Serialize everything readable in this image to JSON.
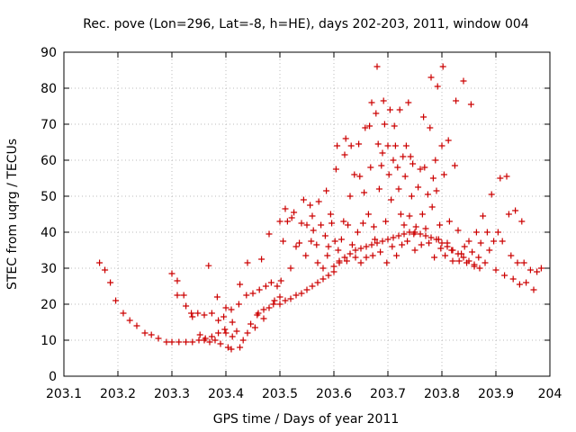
{
  "chart_data": {
    "type": "scatter",
    "title": "Rec. pove (Lon=296, Lat=-8, h=HE), days 202-203, 2011, window 004",
    "xlabel": "GPS time / Days of year 2011",
    "ylabel": "STEC from uqrg / TECUs",
    "xlim": [
      203.1,
      204.0
    ],
    "ylim": [
      0,
      90
    ],
    "xticks": [
      "203.1",
      "203.2",
      "203.3",
      "203.4",
      "203.5",
      "203.6",
      "203.7",
      "203.8",
      "203.9",
      "204"
    ],
    "yticks": [
      "0",
      "10",
      "20",
      "30",
      "40",
      "50",
      "60",
      "70",
      "80",
      "90"
    ],
    "grid": true,
    "marker": "+",
    "color": "#cc0000",
    "series": [
      {
        "points": [
          [
            203.166,
            31.5
          ],
          [
            203.176,
            29.5
          ],
          [
            203.186,
            26.0
          ],
          [
            203.196,
            21.0
          ],
          [
            203.21,
            17.5
          ],
          [
            203.222,
            15.5
          ],
          [
            203.235,
            14.0
          ],
          [
            203.25,
            12.0
          ],
          [
            203.262,
            11.5
          ],
          [
            203.275,
            10.5
          ],
          [
            203.29,
            9.5
          ],
          [
            203.3,
            9.5
          ],
          [
            203.313,
            9.5
          ],
          [
            203.326,
            9.5
          ],
          [
            203.338,
            9.5
          ],
          [
            203.35,
            10.0
          ],
          [
            203.362,
            10.5
          ],
          [
            203.374,
            11.0
          ],
          [
            203.386,
            12.0
          ],
          [
            203.398,
            13.0
          ],
          [
            203.3,
            28.5
          ],
          [
            203.31,
            26.5
          ],
          [
            203.31,
            22.5
          ],
          [
            203.322,
            22.5
          ],
          [
            203.326,
            19.5
          ],
          [
            203.336,
            17.5
          ],
          [
            203.338,
            16.5
          ],
          [
            203.348,
            17.5
          ],
          [
            203.36,
            17.0
          ],
          [
            203.368,
            30.7
          ],
          [
            203.374,
            17.5
          ],
          [
            203.384,
            22.0
          ],
          [
            203.386,
            15.5
          ],
          [
            203.396,
            16.5
          ],
          [
            203.4,
            19.0
          ],
          [
            203.41,
            18.5
          ],
          [
            203.412,
            15.0
          ],
          [
            203.424,
            20.0
          ],
          [
            203.426,
            25.5
          ],
          [
            203.438,
            22.5
          ],
          [
            203.44,
            31.5
          ],
          [
            203.45,
            23.0
          ],
          [
            203.458,
            17.0
          ],
          [
            203.462,
            24.0
          ],
          [
            203.466,
            32.5
          ],
          [
            203.47,
            18.5
          ],
          [
            203.474,
            25.0
          ],
          [
            203.48,
            39.5
          ],
          [
            203.484,
            26.0
          ],
          [
            203.49,
            21.0
          ],
          [
            203.495,
            25.0
          ],
          [
            203.5,
            22.0
          ],
          [
            203.502,
            26.5
          ],
          [
            203.352,
            11.5
          ],
          [
            203.36,
            10.0
          ],
          [
            203.37,
            9.5
          ],
          [
            203.38,
            10.0
          ],
          [
            203.39,
            9.0
          ],
          [
            203.4,
            12.0
          ],
          [
            203.404,
            8.0
          ],
          [
            203.41,
            7.5
          ],
          [
            203.412,
            11.0
          ],
          [
            203.42,
            12.5
          ],
          [
            203.426,
            8.0
          ],
          [
            203.432,
            10.0
          ],
          [
            203.44,
            12.0
          ],
          [
            203.446,
            14.5
          ],
          [
            203.454,
            13.5
          ],
          [
            203.46,
            17.5
          ],
          [
            203.47,
            16.0
          ],
          [
            203.48,
            19.0
          ],
          [
            203.488,
            20.0
          ],
          [
            203.5,
            20.0
          ],
          [
            203.51,
            21.0
          ],
          [
            203.52,
            21.5
          ],
          [
            203.53,
            22.5
          ],
          [
            203.54,
            23.0
          ],
          [
            203.55,
            24.0
          ],
          [
            203.56,
            25.0
          ],
          [
            203.57,
            26.0
          ],
          [
            203.58,
            27.0
          ],
          [
            203.59,
            28.0
          ],
          [
            203.6,
            29.0
          ],
          [
            203.5,
            43.0
          ],
          [
            203.506,
            37.5
          ],
          [
            203.51,
            46.5
          ],
          [
            203.514,
            43.0
          ],
          [
            203.52,
            30.0
          ],
          [
            203.522,
            44.0
          ],
          [
            203.526,
            45.5
          ],
          [
            203.53,
            36.0
          ],
          [
            203.536,
            37.0
          ],
          [
            203.54,
            42.5
          ],
          [
            203.544,
            49.0
          ],
          [
            203.548,
            33.5
          ],
          [
            203.55,
            42.0
          ],
          [
            203.556,
            47.5
          ],
          [
            203.558,
            37.5
          ],
          [
            203.56,
            44.5
          ],
          [
            203.562,
            40.5
          ],
          [
            203.568,
            36.5
          ],
          [
            203.57,
            31.5
          ],
          [
            203.572,
            48.5
          ],
          [
            203.576,
            42.0
          ],
          [
            203.58,
            30.0
          ],
          [
            203.584,
            39.0
          ],
          [
            203.586,
            51.5
          ],
          [
            203.588,
            33.5
          ],
          [
            203.59,
            36.0
          ],
          [
            203.594,
            45.0
          ],
          [
            203.596,
            42.5
          ],
          [
            203.6,
            30.5
          ],
          [
            203.602,
            37.5
          ],
          [
            203.604,
            57.5
          ],
          [
            203.606,
            64.0
          ],
          [
            203.608,
            35.0
          ],
          [
            203.61,
            31.5
          ],
          [
            203.614,
            38.0
          ],
          [
            203.618,
            43.0
          ],
          [
            203.62,
            61.5
          ],
          [
            203.622,
            66.0
          ],
          [
            203.624,
            32.0
          ],
          [
            203.626,
            42.0
          ],
          [
            203.63,
            50.0
          ],
          [
            203.632,
            64.0
          ],
          [
            203.634,
            36.5
          ],
          [
            203.638,
            56.0
          ],
          [
            203.64,
            33.0
          ],
          [
            203.644,
            40.0
          ],
          [
            203.646,
            64.5
          ],
          [
            203.648,
            55.5
          ],
          [
            203.65,
            31.5
          ],
          [
            203.654,
            42.5
          ],
          [
            203.656,
            51.0
          ],
          [
            203.658,
            69.0
          ],
          [
            203.66,
            33.0
          ],
          [
            203.664,
            45.0
          ],
          [
            203.666,
            69.5
          ],
          [
            203.668,
            58.0
          ],
          [
            203.67,
            76.0
          ],
          [
            203.672,
            33.5
          ],
          [
            203.674,
            41.5
          ],
          [
            203.676,
            38.0
          ],
          [
            203.678,
            73.0
          ],
          [
            203.68,
            86.0
          ],
          [
            203.682,
            64.5
          ],
          [
            203.684,
            52.0
          ],
          [
            203.686,
            34.5
          ],
          [
            203.688,
            58.5
          ],
          [
            203.69,
            62.0
          ],
          [
            203.692,
            76.5
          ],
          [
            203.694,
            70.0
          ],
          [
            203.696,
            43.0
          ],
          [
            203.698,
            31.5
          ],
          [
            203.7,
            64.0
          ],
          [
            203.702,
            56.0
          ],
          [
            203.704,
            74.0
          ],
          [
            203.706,
            49.0
          ],
          [
            203.708,
            36.0
          ],
          [
            203.71,
            60.0
          ],
          [
            203.712,
            69.5
          ],
          [
            203.714,
            64.0
          ],
          [
            203.716,
            33.5
          ],
          [
            203.718,
            58.0
          ],
          [
            203.72,
            52.0
          ],
          [
            203.722,
            74.0
          ],
          [
            203.724,
            45.0
          ],
          [
            203.726,
            36.5
          ],
          [
            203.728,
            61.0
          ],
          [
            203.73,
            42.0
          ],
          [
            203.732,
            55.5
          ],
          [
            203.734,
            64.0
          ],
          [
            203.736,
            37.5
          ],
          [
            203.738,
            76.0
          ],
          [
            203.74,
            44.5
          ],
          [
            203.742,
            61.0
          ],
          [
            203.744,
            50.0
          ],
          [
            203.746,
            59.0
          ],
          [
            203.748,
            39.5
          ],
          [
            203.75,
            35.0
          ],
          [
            203.752,
            41.5
          ],
          [
            203.756,
            52.5
          ],
          [
            203.76,
            57.5
          ],
          [
            203.762,
            36.5
          ],
          [
            203.764,
            45.0
          ],
          [
            203.766,
            72.0
          ],
          [
            203.768,
            58.0
          ],
          [
            203.77,
            41.0
          ],
          [
            203.774,
            50.5
          ],
          [
            203.776,
            37.0
          ],
          [
            203.778,
            69.0
          ],
          [
            203.78,
            83.0
          ],
          [
            203.782,
            47.0
          ],
          [
            203.784,
            55.0
          ],
          [
            203.786,
            33.0
          ],
          [
            203.788,
            60.0
          ],
          [
            203.79,
            51.5
          ],
          [
            203.792,
            80.5
          ],
          [
            203.794,
            38.0
          ],
          [
            203.796,
            42.0
          ],
          [
            203.798,
            35.5
          ],
          [
            203.8,
            64.0
          ],
          [
            203.802,
            86.0
          ],
          [
            203.804,
            56.0
          ],
          [
            203.806,
            33.5
          ],
          [
            203.81,
            37.0
          ],
          [
            203.812,
            65.5
          ],
          [
            203.814,
            43.0
          ],
          [
            203.818,
            35.0
          ],
          [
            203.82,
            32.0
          ],
          [
            203.824,
            58.5
          ],
          [
            203.826,
            76.5
          ],
          [
            203.83,
            40.5
          ],
          [
            203.832,
            32.0
          ],
          [
            203.836,
            34.0
          ],
          [
            203.84,
            82.0
          ],
          [
            203.842,
            36.0
          ],
          [
            203.846,
            31.5
          ],
          [
            203.85,
            37.5
          ],
          [
            203.854,
            75.5
          ],
          [
            203.856,
            34.5
          ],
          [
            203.86,
            30.5
          ],
          [
            203.864,
            40.0
          ],
          [
            203.868,
            33.0
          ],
          [
            203.872,
            37.0
          ],
          [
            203.876,
            44.5
          ],
          [
            203.88,
            31.5
          ],
          [
            203.884,
            40.0
          ],
          [
            203.888,
            35.0
          ],
          [
            203.892,
            50.5
          ],
          [
            203.896,
            37.5
          ],
          [
            203.9,
            29.5
          ],
          [
            203.904,
            40.0
          ],
          [
            203.908,
            55.0
          ],
          [
            203.912,
            37.5
          ],
          [
            203.916,
            28.0
          ],
          [
            203.92,
            55.5
          ],
          [
            203.924,
            45.0
          ],
          [
            203.928,
            33.5
          ],
          [
            203.932,
            27.0
          ],
          [
            203.936,
            46.0
          ],
          [
            203.94,
            31.5
          ],
          [
            203.944,
            25.5
          ],
          [
            203.948,
            43.0
          ],
          [
            203.952,
            31.5
          ],
          [
            203.956,
            26.0
          ],
          [
            203.964,
            29.5
          ],
          [
            203.97,
            24.0
          ],
          [
            203.976,
            29.0
          ],
          [
            203.984,
            30.0
          ],
          [
            203.61,
            32.0
          ],
          [
            203.62,
            33.0
          ],
          [
            203.63,
            34.0
          ],
          [
            203.64,
            35.0
          ],
          [
            203.65,
            35.5
          ],
          [
            203.66,
            36.0
          ],
          [
            203.67,
            36.5
          ],
          [
            203.68,
            37.0
          ],
          [
            203.69,
            37.5
          ],
          [
            203.7,
            38.0
          ],
          [
            203.71,
            38.5
          ],
          [
            203.72,
            39.0
          ],
          [
            203.73,
            39.5
          ],
          [
            203.74,
            40.0
          ],
          [
            203.75,
            40.0
          ],
          [
            203.76,
            39.5
          ],
          [
            203.77,
            39.0
          ],
          [
            203.78,
            38.5
          ],
          [
            203.79,
            38.0
          ],
          [
            203.8,
            37.0
          ],
          [
            203.81,
            36.0
          ],
          [
            203.82,
            35.0
          ],
          [
            203.83,
            34.0
          ],
          [
            203.84,
            33.0
          ],
          [
            203.85,
            32.0
          ],
          [
            203.86,
            31.0
          ],
          [
            203.87,
            30.0
          ]
        ]
      }
    ]
  }
}
